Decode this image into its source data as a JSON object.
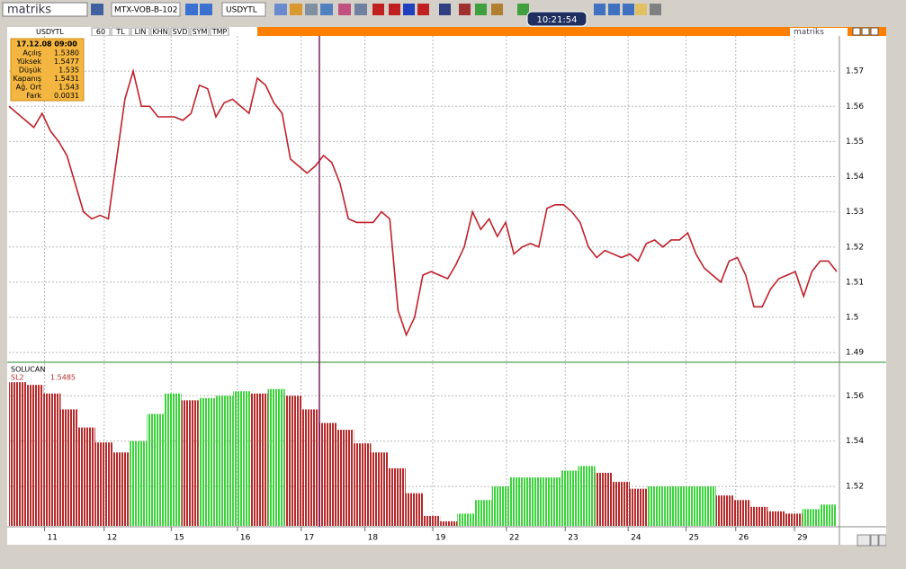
{
  "toolbar": {
    "logo": "matriks",
    "symbol_list": "MTX-VOB-B-102",
    "symbol": "USDYTL",
    "clock": "10:21:54"
  },
  "chart_header": {
    "symbol": "USDYTL",
    "buttons": [
      "60",
      "TL",
      "LIN",
      "KHN",
      "SVD",
      "SYM",
      "TMP"
    ],
    "brand": "matriks"
  },
  "info_box": {
    "datetime": "17.12.08 09:00",
    "rows": [
      [
        "Açılış",
        "1.5380"
      ],
      [
        "Yüksek",
        "1.5477"
      ],
      [
        "Düşük",
        "1.535"
      ],
      [
        "Kapanış",
        "1.5431"
      ],
      [
        "Ağ. Ort",
        "1.543"
      ],
      [
        "Fark",
        "0.0031"
      ]
    ]
  },
  "chart_data": [
    {
      "type": "line",
      "color": "#c0202a",
      "grid": true,
      "values": [
        1.56,
        1.558,
        1.556,
        1.554,
        1.558,
        1.553,
        1.55,
        1.546,
        1.538,
        1.53,
        1.528,
        1.529,
        1.528,
        1.545,
        1.562,
        1.57,
        1.56,
        1.56,
        1.557,
        1.557,
        1.557,
        1.556,
        1.558,
        1.566,
        1.565,
        1.557,
        1.561,
        1.562,
        1.56,
        1.558,
        1.568,
        1.566,
        1.561,
        1.558,
        1.545,
        1.543,
        1.541,
        1.543,
        1.546,
        1.544,
        1.538,
        1.528,
        1.527,
        1.527,
        1.527,
        1.53,
        1.528,
        1.502,
        1.495,
        1.5,
        1.512,
        1.513,
        1.512,
        1.511,
        1.515,
        1.52,
        1.53,
        1.525,
        1.528,
        1.523,
        1.527,
        1.518,
        1.52,
        1.521,
        1.52,
        1.531,
        1.532,
        1.532,
        1.53,
        1.527,
        1.52,
        1.517,
        1.519,
        1.518,
        1.517,
        1.518,
        1.516,
        1.521,
        1.522,
        1.52,
        1.522,
        1.522,
        1.524,
        1.518,
        1.514,
        1.512,
        1.51,
        1.516,
        1.517,
        1.512,
        1.503,
        1.503,
        1.508,
        1.511,
        1.512,
        1.513,
        1.506,
        1.513,
        1.516,
        1.516,
        1.513
      ],
      "xlim": [
        0,
        100
      ],
      "xticks": [
        {
          "value": 4.3,
          "label": "11"
        },
        {
          "value": 11.5,
          "label": "12"
        },
        {
          "value": 19.6,
          "label": "15"
        },
        {
          "value": 27.6,
          "label": "16"
        },
        {
          "value": 35.3,
          "label": "17"
        },
        {
          "value": 43.0,
          "label": "18"
        },
        {
          "value": 51.2,
          "label": "19"
        },
        {
          "value": 60.1,
          "label": "22"
        },
        {
          "value": 67.2,
          "label": "23"
        },
        {
          "value": 74.8,
          "label": "24"
        },
        {
          "value": 81.8,
          "label": "25"
        },
        {
          "value": 87.8,
          "label": "26"
        },
        {
          "value": 94.9,
          "label": "29"
        }
      ],
      "ylim": [
        1.488,
        1.58
      ],
      "yticks": [
        1.49,
        1.5,
        1.51,
        1.52,
        1.53,
        1.54,
        1.55,
        1.56,
        1.57
      ]
    },
    {
      "type": "bar",
      "title": "SOLUCAN",
      "grid": true,
      "up_color": "#3fd23f",
      "down_color": "#b52a2a",
      "series": [
        {
          "name": "SL2",
          "current_label": "1.5485",
          "values": [
            1.566,
            1.5648,
            1.561,
            1.554,
            1.546,
            1.5394,
            1.535,
            1.54,
            1.552,
            1.561,
            1.558,
            1.559,
            1.56,
            1.562,
            1.561,
            1.563,
            1.56,
            1.554,
            1.548,
            1.545,
            1.539,
            1.535,
            1.528,
            1.517,
            1.507,
            1.5046,
            1.508,
            1.514,
            1.52,
            1.524,
            1.524,
            1.524,
            1.527,
            1.529,
            1.526,
            1.522,
            1.519,
            1.52,
            1.52,
            1.52,
            1.52,
            1.516,
            1.514,
            1.511,
            1.509,
            1.508,
            1.51,
            1.512
          ]
        }
      ],
      "ylim": [
        1.5026,
        1.574
      ],
      "yticks": [
        1.52,
        1.54,
        1.56
      ]
    }
  ]
}
